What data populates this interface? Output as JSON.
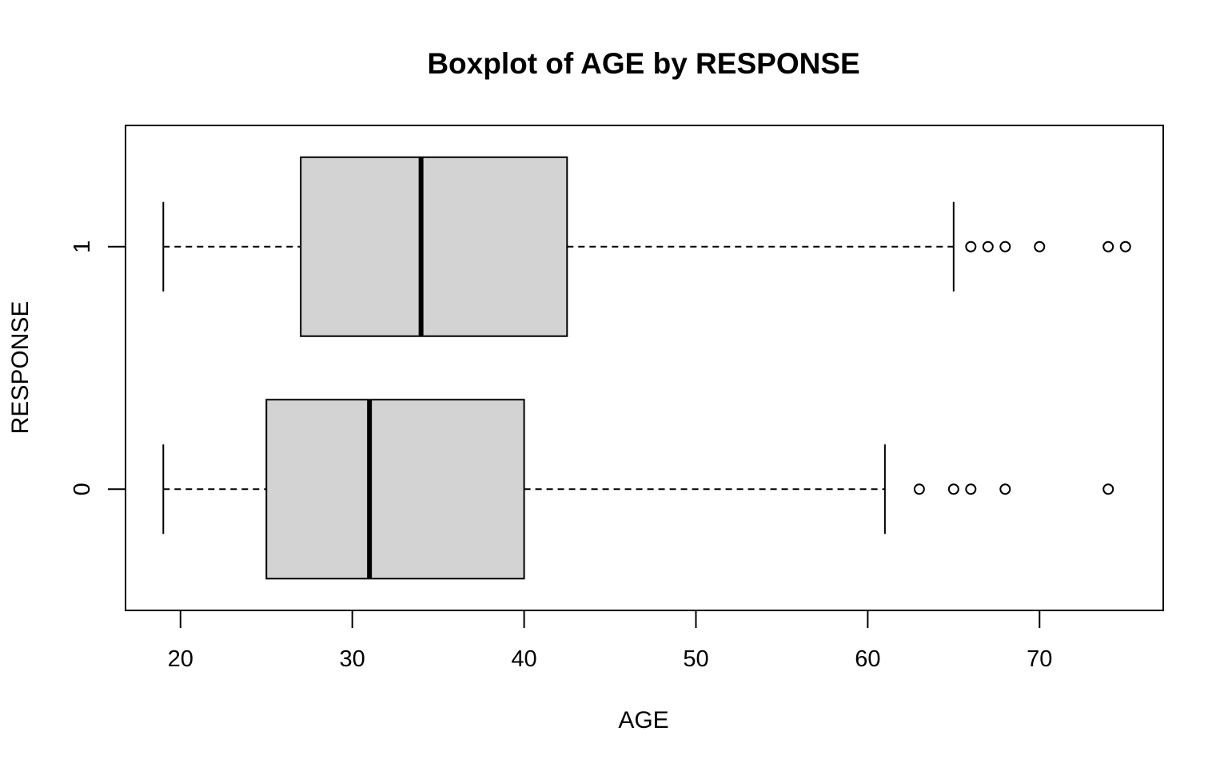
{
  "chart_data": {
    "type": "boxplot",
    "orientation": "horizontal",
    "title": "Boxplot of AGE by RESPONSE",
    "xlabel": "AGE",
    "ylabel": "RESPONSE",
    "xlim": [
      16.8,
      77.2
    ],
    "x_ticks": [
      20,
      30,
      40,
      50,
      60,
      70
    ],
    "categories": [
      "0",
      "1"
    ],
    "groups": [
      {
        "category": "0",
        "whisker_low": 19,
        "q1": 25,
        "median": 31,
        "q3": 40,
        "whisker_high": 61,
        "outliers": [
          63,
          65,
          66,
          68,
          74
        ]
      },
      {
        "category": "1",
        "whisker_low": 19,
        "q1": 27,
        "median": 34,
        "q3": 42.5,
        "whisker_high": 65,
        "outliers": [
          66,
          67,
          68,
          70,
          74,
          75
        ]
      }
    ],
    "colors": {
      "box_fill": "#d3d3d3",
      "stroke": "#000000"
    },
    "grid": false,
    "legend": "none"
  }
}
